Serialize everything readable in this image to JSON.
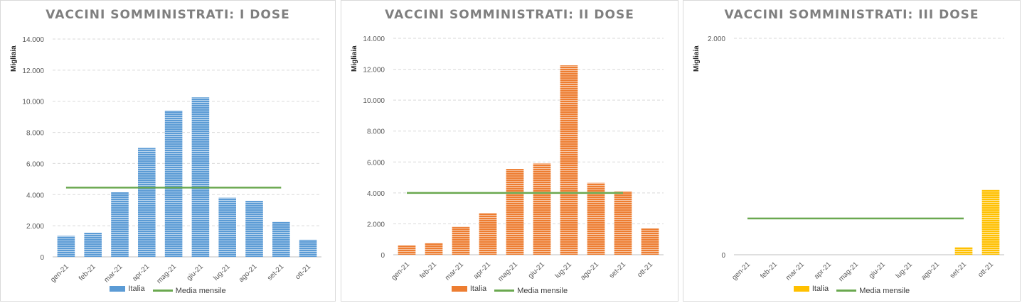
{
  "chart_data": [
    {
      "type": "bar",
      "title": "VACCINI SOMMINISTRATI: I DOSE",
      "ylabel": "Migliaia",
      "categories": [
        "gen-21",
        "feb-21",
        "mar-21",
        "apr-21",
        "mag-21",
        "giu-21",
        "lug-21",
        "ago-21",
        "set-21",
        "ott-21"
      ],
      "series": [
        {
          "name": "Italia",
          "type": "bar",
          "color": "#5b9bd5",
          "values": [
            1350,
            1550,
            4150,
            7000,
            9400,
            10250,
            3800,
            3600,
            2250,
            1100
          ]
        },
        {
          "name": "Media mensile",
          "type": "line",
          "color": "#6aa84f",
          "value": 4450
        }
      ],
      "ylim": [
        0,
        14000
      ],
      "yticks": [
        "0",
        "2.000",
        "4.000",
        "6.000",
        "8.000",
        "10.000",
        "12.000",
        "14.000"
      ],
      "grid": true,
      "legend": "bottom"
    },
    {
      "type": "bar",
      "title": "VACCINI SOMMINISTRATI: II DOSE",
      "ylabel": "Migliaia",
      "categories": [
        "gen-21",
        "feb-21",
        "mar-21",
        "apr-21",
        "mag-21",
        "giu-21",
        "lug-21",
        "ago-21",
        "set-21",
        "ott-21"
      ],
      "series": [
        {
          "name": "Italia",
          "type": "bar",
          "color": "#ed7d31",
          "values": [
            600,
            750,
            1800,
            2700,
            5550,
            5900,
            12250,
            4650,
            4100,
            1700
          ]
        },
        {
          "name": "Media mensile",
          "type": "line",
          "color": "#6aa84f",
          "value": 4000
        }
      ],
      "ylim": [
        0,
        14000
      ],
      "yticks": [
        "0",
        "2.000",
        "4.000",
        "6.000",
        "8.000",
        "10.000",
        "12.000",
        "14.000"
      ],
      "grid": true,
      "legend": "bottom"
    },
    {
      "type": "bar",
      "title": "VACCINI SOMMINISTRATI: III DOSE",
      "ylabel": "Migliaia",
      "categories": [
        "gen-21",
        "feb-21",
        "mar-21",
        "apr-21",
        "mag-21",
        "giu-21",
        "lug-21",
        "ago-21",
        "set-21",
        "ott-21"
      ],
      "series": [
        {
          "name": "Italia",
          "type": "bar",
          "color": "#ffc000",
          "values": [
            0,
            0,
            0,
            0,
            0,
            0,
            0,
            0,
            70,
            600
          ]
        },
        {
          "name": "Media mensile",
          "type": "line",
          "color": "#6aa84f",
          "value": 335
        }
      ],
      "ylim": [
        0,
        2000
      ],
      "yticks": [
        "0",
        "2.000"
      ],
      "grid": true,
      "legend": "bottom"
    }
  ]
}
